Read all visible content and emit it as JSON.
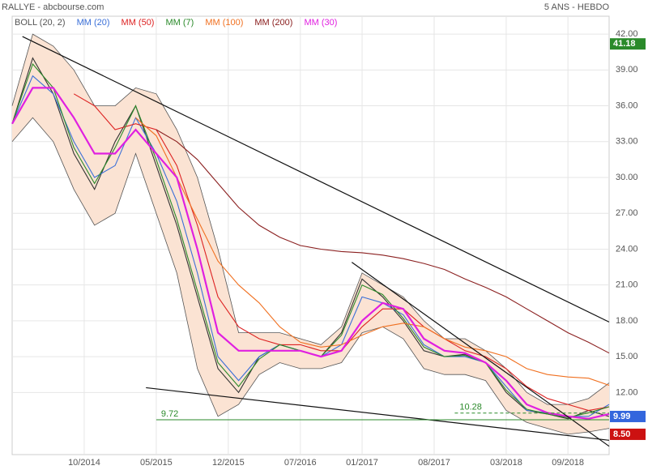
{
  "chart_data": {
    "type": "line",
    "title": "RALLYE - abcbourse.com",
    "subtitle": "5 ANS - HEBDO",
    "x": [
      "03/2014",
      "05/2014",
      "07/2014",
      "09/2014",
      "11/2014",
      "01/2015",
      "03/2015",
      "05/2015",
      "07/2015",
      "09/2015",
      "11/2015",
      "01/2016",
      "03/2016",
      "05/2016",
      "07/2016",
      "09/2016",
      "11/2016",
      "01/2017",
      "03/2017",
      "05/2017",
      "07/2017",
      "09/2017",
      "11/2017",
      "01/2018",
      "03/2018",
      "05/2018",
      "07/2018",
      "09/2018",
      "11/2018",
      "01/2019"
    ],
    "xlim": [
      "03/2014",
      "01/2019"
    ],
    "xticks": [
      "10/2014",
      "05/2015",
      "12/2015",
      "07/2016",
      "01/2017",
      "08/2017",
      "03/2018",
      "09/2018"
    ],
    "ylim": [
      6.8,
      43.5
    ],
    "yticks": [
      {
        "value": 42,
        "label": "42.00"
      },
      {
        "value": 39,
        "label": "39.00"
      },
      {
        "value": 36,
        "label": "36.00"
      },
      {
        "value": 33,
        "label": "33.00"
      },
      {
        "value": 30,
        "label": "30.00"
      },
      {
        "value": 27,
        "label": "27.00"
      },
      {
        "value": 24,
        "label": "24.00"
      },
      {
        "value": 21,
        "label": "21.00"
      },
      {
        "value": 18,
        "label": "18.00"
      },
      {
        "value": 15,
        "label": "15.00"
      },
      {
        "value": 12,
        "label": "12.00"
      }
    ],
    "grid": true,
    "bollinger": {
      "name": "BOLL (20, 2)",
      "color": "#fbe3d3",
      "line_color": "#555555",
      "upper": [
        36,
        42,
        41,
        39,
        36,
        36,
        37.5,
        37,
        34,
        30,
        24,
        17,
        17,
        17,
        16.5,
        16,
        17.5,
        22,
        21,
        20,
        18,
        16.5,
        16.5,
        15.5,
        14,
        12,
        11,
        11,
        11.5,
        12.8
      ],
      "lower": [
        33,
        35,
        33,
        29,
        26,
        27,
        32,
        27,
        22,
        14,
        10,
        11,
        13.5,
        14.5,
        14,
        14,
        14.5,
        17,
        17.5,
        16.5,
        14,
        13.5,
        13.5,
        13,
        10.5,
        9.5,
        9,
        8.5,
        8.7,
        9
      ]
    },
    "series": [
      {
        "color": "#333333",
        "values": [
          34.5,
          40,
          37,
          32,
          29,
          33,
          36,
          31,
          26,
          20,
          14,
          12,
          15,
          16,
          15.5,
          15,
          17,
          21.5,
          20,
          18,
          15.5,
          15,
          15.2,
          14.5,
          12,
          10.5,
          10.2,
          9.8,
          10.5,
          9.99
        ]
      },
      {
        "name": "MM (20)",
        "color": "#3a6fd8",
        "values": [
          34.5,
          38.5,
          37,
          33,
          30,
          31,
          35,
          32,
          28,
          22,
          15,
          13,
          15,
          16,
          15.5,
          15,
          16,
          20,
          19.5,
          18.5,
          16,
          15,
          15,
          14.5,
          12.5,
          10.5,
          10.3,
          10,
          10,
          11
        ]
      },
      {
        "name": "MM (50)",
        "color": "#dd2222",
        "values": [
          null,
          null,
          null,
          37,
          36,
          34,
          34.5,
          34,
          31,
          26,
          20,
          17.5,
          16.5,
          16,
          16,
          15.5,
          15.5,
          17.5,
          19,
          19,
          17.5,
          16.5,
          15.5,
          15,
          14,
          12.5,
          11.5,
          11,
          10.5,
          10.8
        ]
      },
      {
        "name": "MM (7)",
        "color": "#2a8a2a",
        "values": [
          34.5,
          39.5,
          37.5,
          32.5,
          29.5,
          32.5,
          36,
          31.5,
          26.5,
          20.5,
          14.5,
          12.5,
          14.8,
          16,
          15.5,
          15,
          16.8,
          21,
          20.2,
          18.2,
          15.8,
          15,
          15.1,
          14.5,
          12.2,
          10.6,
          10.2,
          9.9,
          10.3,
          10.8
        ]
      },
      {
        "name": "MM (100)",
        "color": "#f07020",
        "values": [
          null,
          null,
          null,
          null,
          null,
          null,
          35,
          33.5,
          30,
          26.5,
          23,
          21,
          19.5,
          17.5,
          16.2,
          15.8,
          16,
          16.8,
          17.5,
          17.8,
          17.5,
          16.5,
          15.8,
          15.5,
          15,
          14,
          13.5,
          13.3,
          13.2,
          12.6
        ]
      },
      {
        "name": "MM (200)",
        "color": "#8b2020",
        "values": [
          null,
          null,
          null,
          null,
          null,
          null,
          null,
          34,
          33,
          31.5,
          29.5,
          27.5,
          26,
          25,
          24.3,
          24,
          23.8,
          23.7,
          23.5,
          23.2,
          22.8,
          22.3,
          21.5,
          20.8,
          20,
          19,
          18,
          17,
          16.2,
          15.3
        ]
      },
      {
        "name": "MM (30)",
        "color": "#e020e0",
        "values": [
          34.5,
          37.5,
          37.5,
          35,
          32,
          32,
          34,
          32,
          30,
          24,
          17,
          15.5,
          15.5,
          15.5,
          15.5,
          15,
          15.5,
          18,
          19.5,
          19,
          16.5,
          15.5,
          15.3,
          14.5,
          13,
          11,
          10.3,
          10,
          9.8,
          10.2
        ]
      }
    ],
    "trendlines": [
      {
        "color": "#111111",
        "x": [
          "04/2014",
          "01/2019"
        ],
        "y": [
          41.8,
          17.9
        ]
      },
      {
        "color": "#111111",
        "x": [
          "12/2016",
          "01/2019"
        ],
        "y": [
          22.9,
          7.5
        ]
      },
      {
        "color": "#111111",
        "x": [
          "04/2015",
          "01/2019"
        ],
        "y": [
          12.4,
          8.0
        ]
      }
    ],
    "levels": [
      {
        "value": 9.72,
        "color": "#2a8a2a",
        "from": "05/2015",
        "dashed": false
      },
      {
        "value": 10.28,
        "color": "#2a8a2a",
        "from": "10/2017",
        "dashed": true
      }
    ],
    "price_markers": [
      {
        "value": 41.18,
        "color": "#2a8a2a"
      },
      {
        "value": 9.99,
        "color": "#3366dd"
      },
      {
        "value": {
          "value": 8.5,
          "label": "8.50"
        },
        "color": "#cc1111"
      }
    ]
  }
}
